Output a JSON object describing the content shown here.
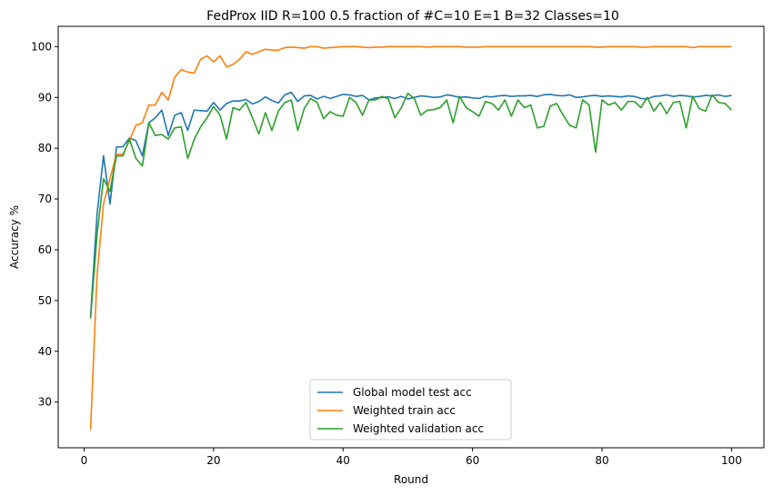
{
  "chart_data": {
    "type": "line",
    "title": "FedProx IID R=100 0.5 fraction of #C=10 E=1 B=32  Classes=10",
    "xlabel": "Round",
    "ylabel": "Accuracy %",
    "xlim": [
      -4,
      105
    ],
    "ylim": [
      21,
      104
    ],
    "xticks": [
      0,
      20,
      40,
      60,
      80,
      100
    ],
    "yticks": [
      30,
      40,
      50,
      60,
      70,
      80,
      90,
      100
    ],
    "legend_position": "bottom-center",
    "grid": false,
    "series": [
      {
        "name": "Global model test acc",
        "color": "#1f77b4",
        "x": [
          1,
          2,
          3,
          4,
          5,
          6,
          7,
          8,
          9,
          10,
          11,
          12,
          13,
          14,
          15,
          16,
          17,
          18,
          19,
          20,
          21,
          22,
          23,
          24,
          25,
          26,
          27,
          28,
          29,
          30,
          31,
          32,
          33,
          34,
          35,
          36,
          37,
          38,
          39,
          40,
          41,
          42,
          43,
          44,
          45,
          46,
          47,
          48,
          49,
          50,
          51,
          52,
          53,
          54,
          55,
          56,
          57,
          58,
          59,
          60,
          61,
          62,
          63,
          64,
          65,
          66,
          67,
          68,
          69,
          70,
          71,
          72,
          73,
          74,
          75,
          76,
          77,
          78,
          79,
          80,
          81,
          82,
          83,
          84,
          85,
          86,
          87,
          88,
          89,
          90,
          91,
          92,
          93,
          94,
          95,
          96,
          97,
          98,
          99,
          100
        ],
        "y": [
          47.0,
          67.0,
          78.5,
          69.0,
          80.2,
          80.3,
          82.0,
          81.5,
          78.5,
          85.0,
          86.0,
          87.5,
          82.5,
          86.5,
          87.0,
          83.5,
          87.5,
          87.4,
          87.3,
          89.0,
          87.5,
          88.8,
          89.3,
          89.3,
          89.6,
          88.7,
          89.2,
          90.1,
          89.4,
          88.9,
          90.5,
          91.0,
          89.2,
          90.3,
          90.4,
          89.7,
          90.2,
          89.8,
          90.2,
          90.6,
          90.5,
          90.2,
          90.4,
          89.5,
          89.9,
          90.0,
          90.1,
          89.8,
          90.2,
          89.7,
          90.0,
          90.3,
          90.2,
          90.0,
          90.1,
          90.5,
          90.3,
          90.0,
          90.1,
          89.9,
          89.8,
          90.2,
          90.1,
          90.3,
          90.4,
          90.2,
          90.3,
          90.3,
          90.4,
          90.2,
          90.5,
          90.6,
          90.4,
          90.3,
          90.5,
          90.0,
          90.1,
          90.3,
          90.4,
          90.2,
          90.3,
          90.2,
          90.1,
          90.3,
          90.2,
          89.8,
          89.7,
          90.2,
          90.3,
          90.5,
          90.2,
          90.4,
          90.3,
          90.1,
          90.2,
          90.4,
          90.3,
          90.5,
          90.2,
          90.4
        ]
      },
      {
        "name": "Weighted train acc",
        "color": "#ff7f0e",
        "x": [
          1,
          2,
          3,
          4,
          5,
          6,
          7,
          8,
          9,
          10,
          11,
          12,
          13,
          14,
          15,
          16,
          17,
          18,
          19,
          20,
          21,
          22,
          23,
          24,
          25,
          26,
          27,
          28,
          29,
          30,
          31,
          32,
          33,
          34,
          35,
          36,
          37,
          38,
          39,
          40,
          41,
          42,
          43,
          44,
          45,
          46,
          47,
          48,
          49,
          50,
          51,
          52,
          53,
          54,
          55,
          56,
          57,
          58,
          59,
          60,
          61,
          62,
          63,
          64,
          65,
          66,
          67,
          68,
          69,
          70,
          71,
          72,
          73,
          74,
          75,
          76,
          77,
          78,
          79,
          80,
          81,
          82,
          83,
          84,
          85,
          86,
          87,
          88,
          89,
          90,
          91,
          92,
          93,
          94,
          95,
          96,
          97,
          98,
          99,
          100
        ],
        "y": [
          24.5,
          55.0,
          69.0,
          74.0,
          78.8,
          78.8,
          81.5,
          84.5,
          85.0,
          88.5,
          88.5,
          91.0,
          89.5,
          94.0,
          95.5,
          95.0,
          94.8,
          97.5,
          98.2,
          97.0,
          98.2,
          96.0,
          96.5,
          97.5,
          99.0,
          98.5,
          99.0,
          99.5,
          99.3,
          99.3,
          99.8,
          99.9,
          99.8,
          99.7,
          100.0,
          100.0,
          99.7,
          99.8,
          99.9,
          100.0,
          100.0,
          100.0,
          99.9,
          99.8,
          99.9,
          99.9,
          100.0,
          100.0,
          100.0,
          100.0,
          100.0,
          100.0,
          99.9,
          100.0,
          100.0,
          100.0,
          100.0,
          100.0,
          99.9,
          99.9,
          99.9,
          100.0,
          100.0,
          100.0,
          100.0,
          100.0,
          100.0,
          100.0,
          100.0,
          100.0,
          100.0,
          100.0,
          100.0,
          100.0,
          100.0,
          100.0,
          100.0,
          100.0,
          99.9,
          99.9,
          100.0,
          100.0,
          100.0,
          100.0,
          100.0,
          99.9,
          99.9,
          100.0,
          100.0,
          100.0,
          100.0,
          100.0,
          100.0,
          99.8,
          100.0,
          100.0,
          100.0,
          100.0,
          100.0,
          100.0
        ]
      },
      {
        "name": "Weighted validation acc",
        "color": "#2ca02c",
        "x": [
          1,
          2,
          3,
          4,
          5,
          6,
          7,
          8,
          9,
          10,
          11,
          12,
          13,
          14,
          15,
          16,
          17,
          18,
          19,
          20,
          21,
          22,
          23,
          24,
          25,
          26,
          27,
          28,
          29,
          30,
          31,
          32,
          33,
          34,
          35,
          36,
          37,
          38,
          39,
          40,
          41,
          42,
          43,
          44,
          45,
          46,
          47,
          48,
          49,
          50,
          51,
          52,
          53,
          54,
          55,
          56,
          57,
          58,
          59,
          60,
          61,
          62,
          63,
          64,
          65,
          66,
          67,
          68,
          69,
          70,
          71,
          72,
          73,
          74,
          75,
          76,
          77,
          78,
          79,
          80,
          81,
          82,
          83,
          84,
          85,
          86,
          87,
          88,
          89,
          90,
          91,
          92,
          93,
          94,
          95,
          96,
          97,
          98,
          99,
          100
        ],
        "y": [
          46.5,
          63.0,
          74.0,
          71.5,
          78.5,
          78.5,
          81.8,
          78.0,
          76.5,
          85.0,
          82.5,
          82.7,
          81.8,
          84.0,
          84.2,
          78.0,
          81.7,
          84.2,
          86.0,
          88.2,
          86.5,
          81.8,
          88.0,
          87.5,
          89.0,
          86.0,
          82.8,
          87.0,
          83.5,
          87.3,
          89.0,
          89.5,
          83.5,
          87.8,
          89.8,
          89.0,
          85.8,
          87.2,
          86.5,
          86.3,
          90.0,
          89.0,
          86.5,
          89.5,
          89.5,
          90.2,
          89.7,
          86.0,
          88.0,
          90.8,
          89.8,
          86.5,
          87.5,
          87.6,
          88.0,
          89.5,
          85.0,
          90.2,
          88.0,
          87.2,
          86.3,
          89.2,
          88.8,
          87.5,
          89.5,
          86.3,
          89.5,
          88.0,
          88.5,
          84.0,
          84.3,
          88.3,
          88.8,
          86.5,
          84.5,
          84.0,
          89.5,
          88.5,
          79.2,
          89.5,
          88.5,
          89.0,
          87.5,
          89.2,
          89.2,
          88.0,
          90.0,
          87.3,
          89.0,
          86.8,
          89.0,
          89.2,
          84.0,
          90.2,
          87.8,
          87.3,
          90.5,
          89.0,
          88.8,
          87.5
        ]
      }
    ]
  }
}
